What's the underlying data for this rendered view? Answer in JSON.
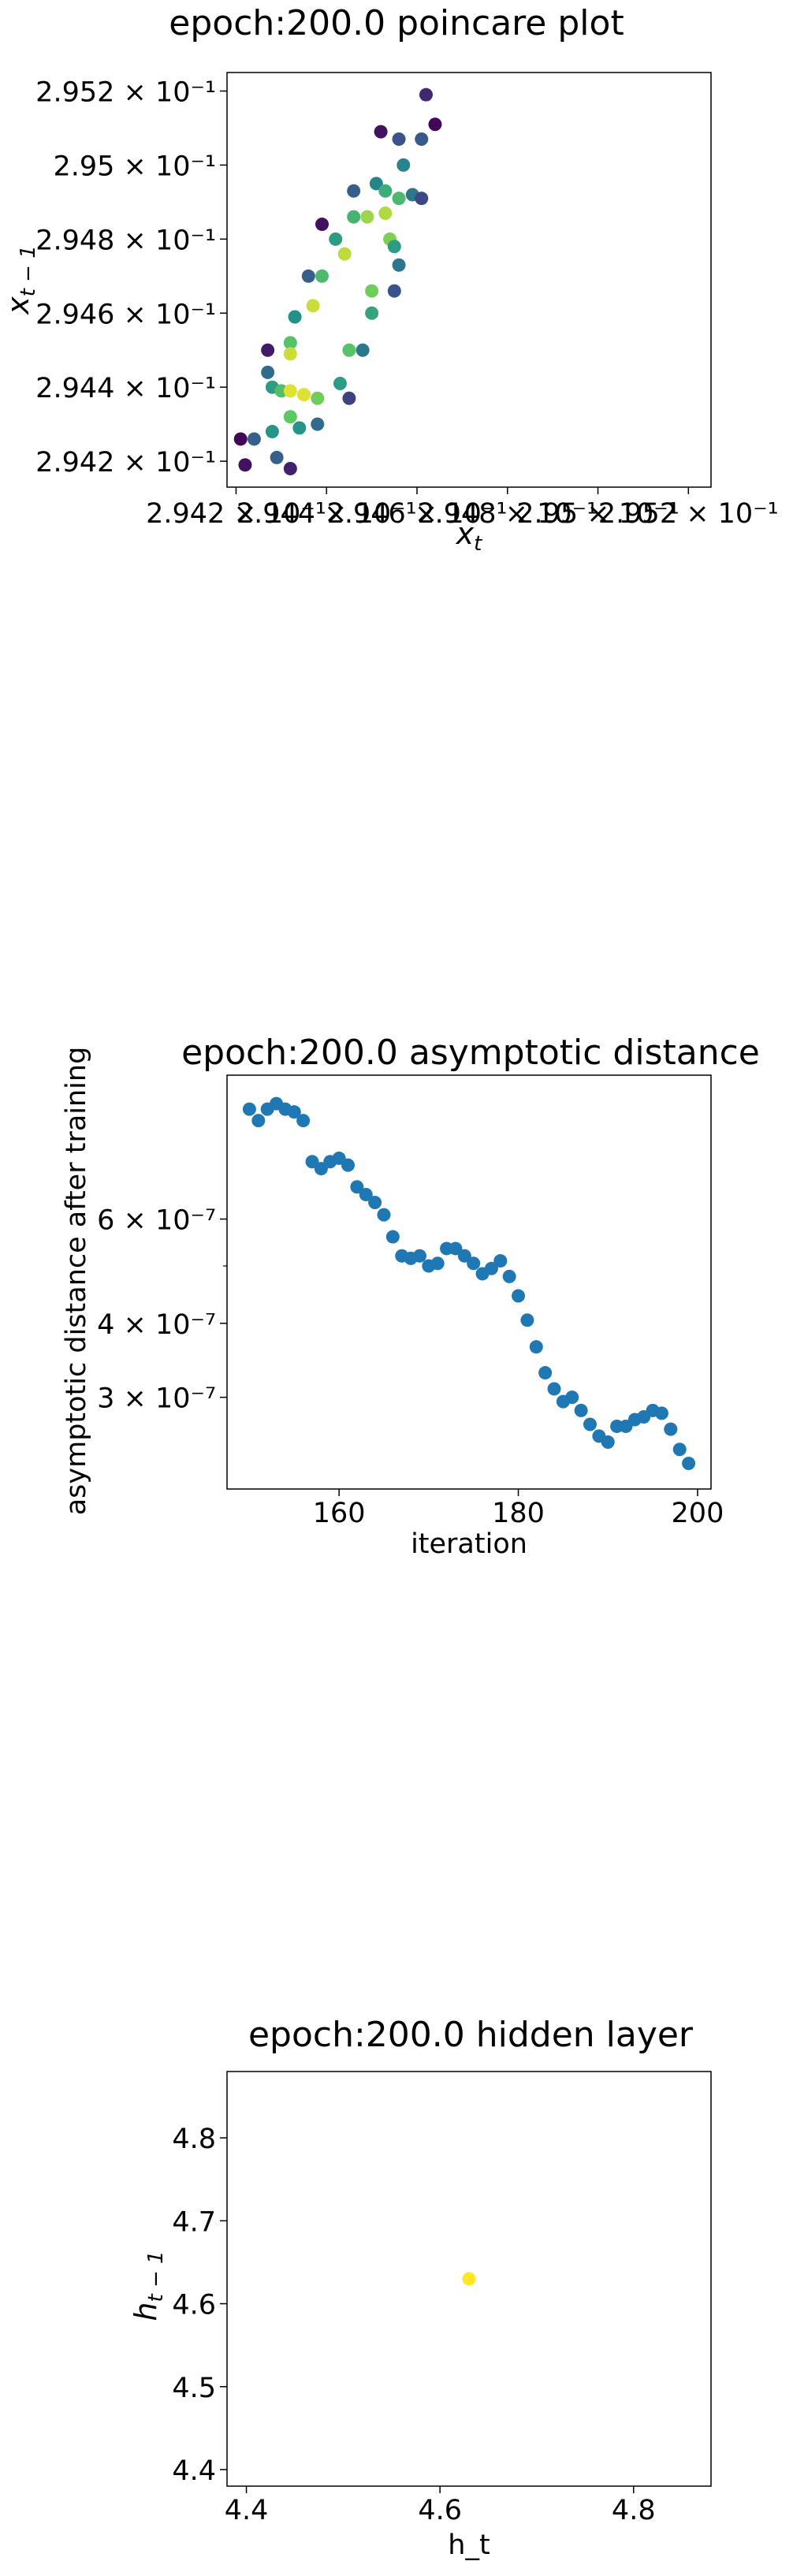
{
  "chart_data": [
    {
      "type": "scatter",
      "title": "epoch:200.0 poincare plot",
      "xlabel": "x_t",
      "ylabel": "x_{t-1}",
      "xlim": [
        0.29418,
        0.29525
      ],
      "ylim": [
        0.29413,
        0.29525
      ],
      "xtick_values": [
        0.2942,
        0.2944,
        0.2946,
        0.2948,
        0.295,
        0.2952
      ],
      "xtick_labels": [
        "2.942 × 10⁻¹",
        "2.944 × 10⁻¹",
        "2.946 × 10⁻¹",
        "2.948 × 10⁻¹",
        "2.95 × 10⁻¹",
        "2.952 × 10⁻¹"
      ],
      "ytick_values": [
        0.2942,
        0.2944,
        0.2946,
        0.2948,
        0.295,
        0.2952
      ],
      "ytick_labels": [
        "2.942 × 10⁻¹",
        "2.944 × 10⁻¹",
        "2.946 × 10⁻¹",
        "2.948 × 10⁻¹",
        "2.95 × 10⁻¹",
        "2.952 × 10⁻¹"
      ],
      "colormap": [
        "#440154",
        "#3b528b",
        "#21918c",
        "#5ec962",
        "#fde725"
      ],
      "points": [
        {
          "x": 0.29421,
          "y": 0.29426,
          "c": 0.02
        },
        {
          "x": 0.29422,
          "y": 0.29419,
          "c": 0.05
        },
        {
          "x": 0.29424,
          "y": 0.29426,
          "c": 0.3
        },
        {
          "x": 0.29427,
          "y": 0.2945,
          "c": 0.08
        },
        {
          "x": 0.29427,
          "y": 0.29444,
          "c": 0.35
        },
        {
          "x": 0.29428,
          "y": 0.2944,
          "c": 0.55
        },
        {
          "x": 0.29428,
          "y": 0.29428,
          "c": 0.52
        },
        {
          "x": 0.29429,
          "y": 0.29421,
          "c": 0.3
        },
        {
          "x": 0.2943,
          "y": 0.29439,
          "c": 0.7
        },
        {
          "x": 0.29432,
          "y": 0.29439,
          "c": 0.95
        },
        {
          "x": 0.29432,
          "y": 0.29432,
          "c": 0.75
        },
        {
          "x": 0.29432,
          "y": 0.29452,
          "c": 0.72
        },
        {
          "x": 0.29432,
          "y": 0.29449,
          "c": 0.92
        },
        {
          "x": 0.29432,
          "y": 0.29418,
          "c": 0.1
        },
        {
          "x": 0.29433,
          "y": 0.29459,
          "c": 0.5
        },
        {
          "x": 0.29434,
          "y": 0.29429,
          "c": 0.52
        },
        {
          "x": 0.29435,
          "y": 0.29438,
          "c": 0.95
        },
        {
          "x": 0.29436,
          "y": 0.2947,
          "c": 0.3
        },
        {
          "x": 0.29437,
          "y": 0.29462,
          "c": 0.92
        },
        {
          "x": 0.29438,
          "y": 0.29437,
          "c": 0.78
        },
        {
          "x": 0.29438,
          "y": 0.2943,
          "c": 0.35
        },
        {
          "x": 0.29439,
          "y": 0.2947,
          "c": 0.68
        },
        {
          "x": 0.29439,
          "y": 0.29484,
          "c": 0.05
        },
        {
          "x": 0.29442,
          "y": 0.2948,
          "c": 0.55
        },
        {
          "x": 0.29443,
          "y": 0.29441,
          "c": 0.55
        },
        {
          "x": 0.29444,
          "y": 0.29476,
          "c": 0.9
        },
        {
          "x": 0.29445,
          "y": 0.29437,
          "c": 0.2
        },
        {
          "x": 0.29445,
          "y": 0.2945,
          "c": 0.72
        },
        {
          "x": 0.29446,
          "y": 0.29486,
          "c": 0.65
        },
        {
          "x": 0.29446,
          "y": 0.29493,
          "c": 0.3
        },
        {
          "x": 0.29448,
          "y": 0.2945,
          "c": 0.4
        },
        {
          "x": 0.29449,
          "y": 0.29486,
          "c": 0.85
        },
        {
          "x": 0.2945,
          "y": 0.2946,
          "c": 0.58
        },
        {
          "x": 0.2945,
          "y": 0.29466,
          "c": 0.78
        },
        {
          "x": 0.29451,
          "y": 0.29495,
          "c": 0.45
        },
        {
          "x": 0.29452,
          "y": 0.29509,
          "c": 0.05
        },
        {
          "x": 0.29453,
          "y": 0.29493,
          "c": 0.62
        },
        {
          "x": 0.29453,
          "y": 0.29487,
          "c": 0.88
        },
        {
          "x": 0.29454,
          "y": 0.2948,
          "c": 0.8
        },
        {
          "x": 0.29455,
          "y": 0.29478,
          "c": 0.55
        },
        {
          "x": 0.29455,
          "y": 0.29466,
          "c": 0.25
        },
        {
          "x": 0.29456,
          "y": 0.29473,
          "c": 0.4
        },
        {
          "x": 0.29456,
          "y": 0.29491,
          "c": 0.68
        },
        {
          "x": 0.29456,
          "y": 0.29507,
          "c": 0.25
        },
        {
          "x": 0.29457,
          "y": 0.295,
          "c": 0.45
        },
        {
          "x": 0.29459,
          "y": 0.29492,
          "c": 0.4
        },
        {
          "x": 0.29461,
          "y": 0.29507,
          "c": 0.28
        },
        {
          "x": 0.29461,
          "y": 0.29491,
          "c": 0.22
        },
        {
          "x": 0.29462,
          "y": 0.29519,
          "c": 0.12
        },
        {
          "x": 0.29464,
          "y": 0.29511,
          "c": 0.02
        }
      ]
    },
    {
      "type": "scatter",
      "title": "epoch:200.0 asymptotic distance",
      "xlabel": "iteration",
      "ylabel": "asymptotic distance after training",
      "yscale": "log",
      "xlim": [
        147.5,
        201.5
      ],
      "ylim": [
        2.1e-07,
        1.05e-06
      ],
      "xtick_values": [
        160,
        180,
        200
      ],
      "xtick_labels": [
        "160",
        "180",
        "200"
      ],
      "ytick_values": [
        3e-07,
        4e-07,
        6e-07
      ],
      "ytick_labels": [
        "3 × 10⁻⁷",
        "4 × 10⁻⁷",
        "6 × 10⁻⁷"
      ],
      "yminor_values": [
        5e-07
      ],
      "color": "#1f77b4",
      "x": [
        150,
        151,
        152,
        153,
        154,
        155,
        156,
        157,
        158,
        159,
        160,
        161,
        162,
        163,
        164,
        165,
        166,
        167,
        168,
        169,
        170,
        171,
        172,
        173,
        174,
        175,
        176,
        177,
        178,
        179,
        180,
        181,
        182,
        183,
        184,
        185,
        186,
        187,
        188,
        189,
        190,
        191,
        192,
        193,
        194,
        195,
        196,
        197,
        198,
        199
      ],
      "y": [
        9.2e-07,
        8.8e-07,
        9.2e-07,
        9.4e-07,
        9.2e-07,
        9.1e-07,
        8.8e-07,
        7.5e-07,
        7.3e-07,
        7.5e-07,
        7.6e-07,
        7.4e-07,
        6.8e-07,
        6.6e-07,
        6.4e-07,
        6.1e-07,
        5.6e-07,
        5.2e-07,
        5.15e-07,
        5.2e-07,
        5e-07,
        5.05e-07,
        5.35e-07,
        5.35e-07,
        5.2e-07,
        5.05e-07,
        4.85e-07,
        4.95e-07,
        5.1e-07,
        4.8e-07,
        4.45e-07,
        4.05e-07,
        3.65e-07,
        3.3e-07,
        3.1e-07,
        2.95e-07,
        3e-07,
        2.85e-07,
        2.7e-07,
        2.58e-07,
        2.52e-07,
        2.68e-07,
        2.68e-07,
        2.75e-07,
        2.78e-07,
        2.85e-07,
        2.82e-07,
        2.65e-07,
        2.45e-07,
        2.32e-07
      ]
    },
    {
      "type": "scatter",
      "title": "epoch:200.0 hidden layer",
      "xlabel": "h_t",
      "ylabel": "h_{t-1}",
      "xlim": [
        4.38,
        4.88
      ],
      "ylim": [
        4.38,
        4.88
      ],
      "xtick_values": [
        4.4,
        4.6,
        4.8
      ],
      "xtick_labels": [
        "4.4",
        "4.6",
        "4.8"
      ],
      "ytick_values": [
        4.4,
        4.5,
        4.6,
        4.7,
        4.8
      ],
      "ytick_labels": [
        "4.4",
        "4.5",
        "4.6",
        "4.7",
        "4.8"
      ],
      "color": "#fde725",
      "points": [
        {
          "x": 4.63,
          "y": 4.63
        }
      ]
    }
  ]
}
